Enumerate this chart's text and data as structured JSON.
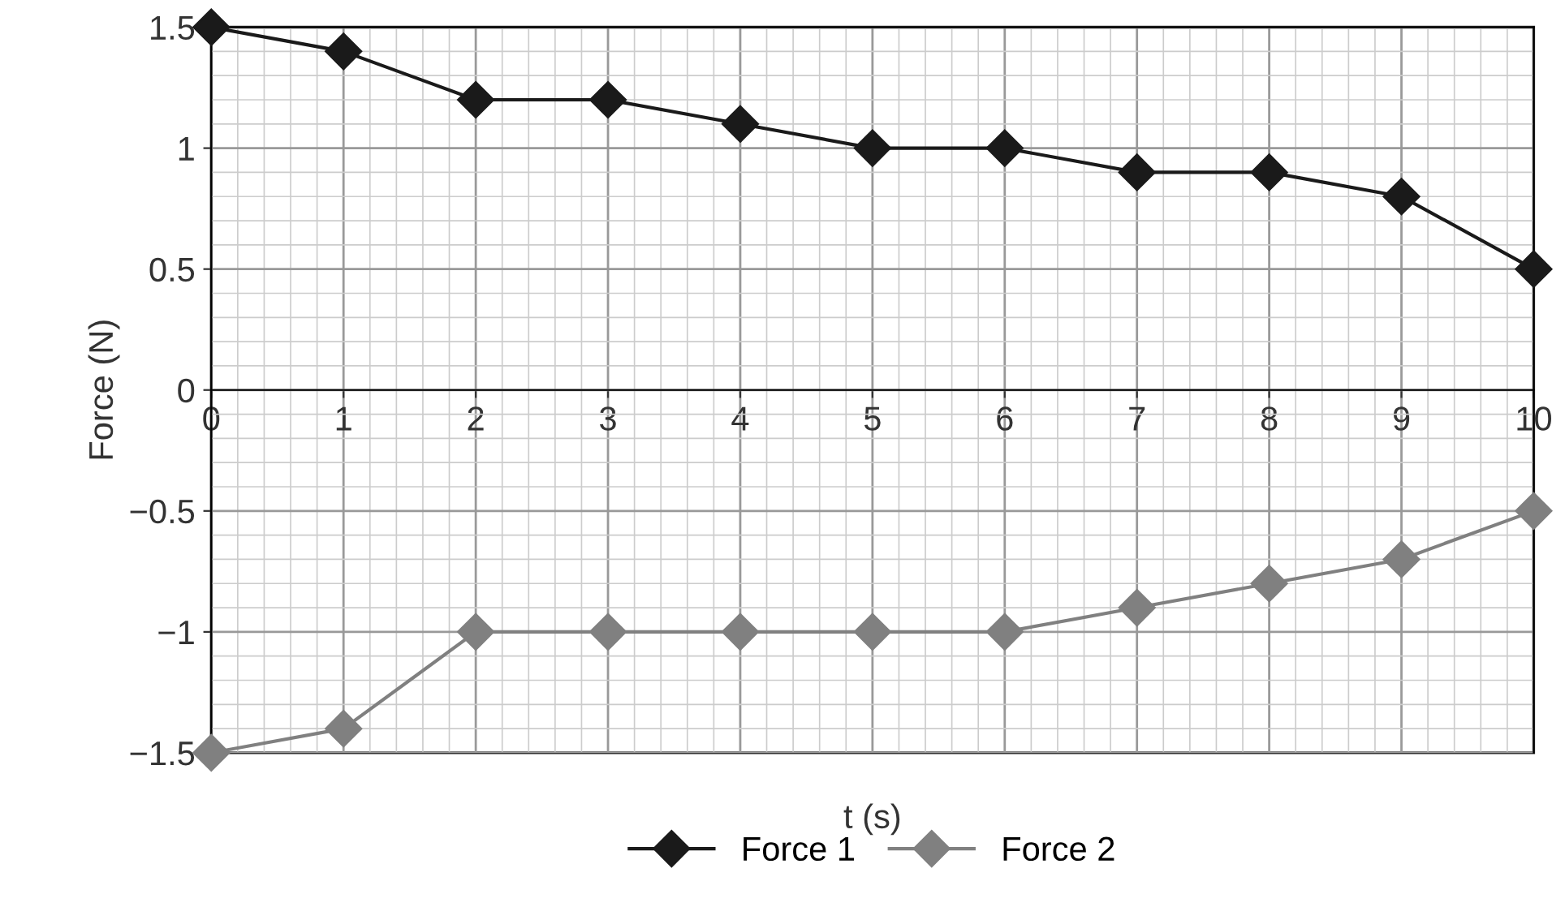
{
  "chart_data": {
    "type": "line",
    "xlabel": "t (s)",
    "ylabel": "Force (N)",
    "x": [
      0,
      1,
      2,
      3,
      4,
      5,
      6,
      7,
      8,
      9,
      10
    ],
    "series": [
      {
        "name": "Force 1",
        "color": "#1a1a1a",
        "values": [
          1.5,
          1.4,
          1.2,
          1.2,
          1.1,
          1.0,
          1.0,
          0.9,
          0.9,
          0.8,
          0.5
        ]
      },
      {
        "name": "Force 2",
        "color": "#808080",
        "values": [
          -1.5,
          -1.4,
          -1,
          -1,
          -1,
          -1,
          -1,
          -0.9,
          -0.8,
          -0.7,
          -0.5
        ]
      }
    ],
    "xlim": [
      0,
      10
    ],
    "ylim": [
      -1.5,
      1.5
    ],
    "xticks": [
      0,
      1,
      2,
      3,
      4,
      5,
      6,
      7,
      8,
      9,
      10
    ],
    "yticks": [
      -1.5,
      -1,
      -0.5,
      0,
      0.5,
      1,
      1.5
    ],
    "grid": true,
    "legend": "bottom",
    "marker": "diamond",
    "line_style": "solid"
  }
}
